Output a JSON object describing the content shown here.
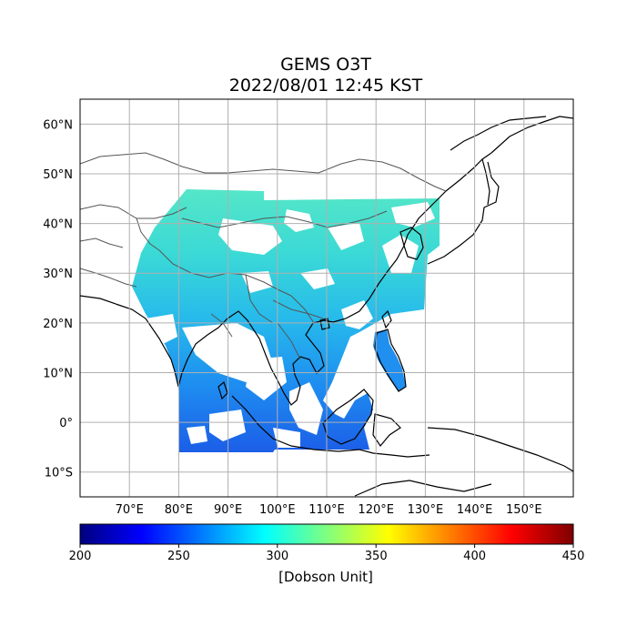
{
  "title": "GEMS O3T",
  "subtitle": "2022/08/01 12:45 KST",
  "map": {
    "lon_range": [
      60,
      160
    ],
    "lat_range": [
      -15,
      65
    ],
    "lon_ticks": [
      "70°E",
      "80°E",
      "90°E",
      "100°E",
      "110°E",
      "120°E",
      "130°E",
      "140°E",
      "150°E"
    ],
    "lat_ticks": [
      "60°N",
      "50°N",
      "40°N",
      "30°N",
      "20°N",
      "10°N",
      "0°",
      "10°S"
    ],
    "grid": true
  },
  "colorbar": {
    "min": 200,
    "max": 450,
    "ticks": [
      "200",
      "250",
      "300",
      "350",
      "400",
      "450"
    ],
    "label": "[Dobson Unit]",
    "colors": [
      "#00007f",
      "#0000ff",
      "#007fff",
      "#00ffff",
      "#7fff7f",
      "#ffff00",
      "#ff7f00",
      "#ff0000",
      "#7f0000"
    ]
  },
  "palette": {
    "north_band": "#4fe3c9",
    "mid_band": "#2ec9e0",
    "south_band": "#1f8ff0",
    "deep_south": "#1c5ee8",
    "coast": "#000000",
    "border": "#555555",
    "gridline": "#b0b0b0"
  }
}
